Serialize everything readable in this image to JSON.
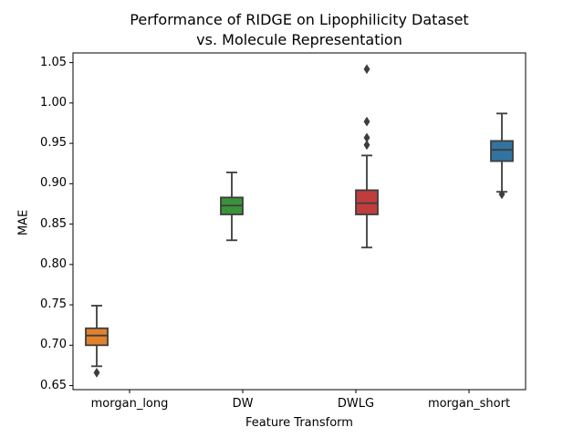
{
  "chart_data": {
    "type": "box",
    "title_line1": "Performance of RIDGE on Lipophilicity Dataset",
    "title_line2": "vs. Molecule Representation",
    "xlabel": "Feature Transform",
    "ylabel": "MAE",
    "ylim": [
      0.645,
      1.062
    ],
    "yticks": [
      "0.65",
      "0.70",
      "0.75",
      "0.80",
      "0.85",
      "0.90",
      "0.95",
      "1.00",
      "1.05"
    ],
    "categories": [
      "morgan_long",
      "DW",
      "DWLG",
      "morgan_short"
    ],
    "colors": [
      "#e1812c",
      "#3a923a",
      "#c03d3e",
      "#3274a1"
    ],
    "boxes": [
      {
        "category": "morgan_long",
        "whisker_low": 0.674,
        "q1": 0.7,
        "median": 0.712,
        "q3": 0.721,
        "whisker_high": 0.749,
        "outliers": [
          0.666
        ]
      },
      {
        "category": "DW",
        "whisker_low": 0.83,
        "q1": 0.862,
        "median": 0.873,
        "q3": 0.883,
        "whisker_high": 0.914,
        "outliers": []
      },
      {
        "category": "DWLG",
        "whisker_low": 0.821,
        "q1": 0.862,
        "median": 0.876,
        "q3": 0.892,
        "whisker_high": 0.935,
        "outliers": [
          0.948,
          0.957,
          0.977,
          1.042
        ]
      },
      {
        "category": "morgan_short",
        "whisker_low": 0.89,
        "q1": 0.928,
        "median": 0.942,
        "q3": 0.953,
        "whisker_high": 0.987,
        "outliers": [
          0.887
        ]
      }
    ],
    "grid": false,
    "legend": "none"
  }
}
